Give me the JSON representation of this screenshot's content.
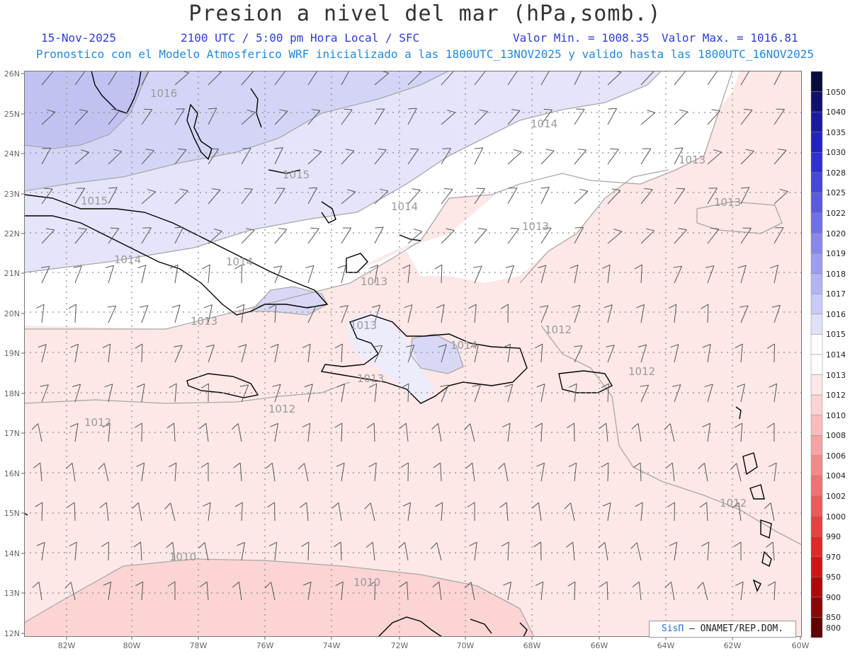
{
  "header": {
    "title": "Presion a nivel del mar (hPa,somb.)",
    "date": "15-Nov-2025",
    "time": "2100 UTC / 5:00 pm Hora Local / SFC",
    "min_label": "Valor Min. = 1008.35",
    "max_label": "Valor Max. = 1016.81",
    "model_line": "Pronostico con el Modelo Atmosferico WRF inicializado a las 1800UTC_13NOV2025 y valido hasta las  1800UTC_16NOV2025"
  },
  "map": {
    "lat_labels": [
      "26N",
      "25N",
      "24N",
      "23N",
      "22N",
      "21N",
      "20N",
      "19N",
      "18N",
      "17N",
      "16N",
      "15N",
      "14N",
      "13N",
      "12N"
    ],
    "lon_labels": [
      "82W",
      "80W",
      "78W",
      "76W",
      "74W",
      "72W",
      "70W",
      "68W",
      "66W",
      "64W",
      "62W",
      "60W"
    ],
    "contour_labels": [
      {
        "text": "1016"
      },
      {
        "text": "1015"
      },
      {
        "text": "1015"
      },
      {
        "text": "1014"
      },
      {
        "text": "1014"
      },
      {
        "text": "1014"
      },
      {
        "text": "1014"
      },
      {
        "text": "1013"
      },
      {
        "text": "1013"
      },
      {
        "text": "1013"
      },
      {
        "text": "1013"
      },
      {
        "text": "1013"
      },
      {
        "text": "1013"
      },
      {
        "text": "1012"
      },
      {
        "text": "1012"
      },
      {
        "text": "1012"
      },
      {
        "text": "1012"
      },
      {
        "text": "1012"
      },
      {
        "text": "1010"
      },
      {
        "text": "1010"
      },
      {
        "text": "1013"
      },
      {
        "text": "1014"
      }
    ]
  },
  "legend": {
    "levels": [
      "1050",
      "1040",
      "1035",
      "1030",
      "1028",
      "1025",
      "1022",
      "1020",
      "1019",
      "1018",
      "1017",
      "1016",
      "1015",
      "1014",
      "1013",
      "1012",
      "1010",
      "1008",
      "1006",
      "1004",
      "1002",
      "1000",
      "990",
      "970",
      "950",
      "900",
      "850",
      "800"
    ],
    "colors": [
      "#0a0a3c",
      "#10106e",
      "#1a1aa0",
      "#2222c0",
      "#3030d0",
      "#4646d8",
      "#5a5ae0",
      "#7070e6",
      "#8888ec",
      "#9c9cf0",
      "#b4b4f4",
      "#cacaf8",
      "#e0e0fa",
      "#ffffff",
      "#ffffff",
      "#fde6e6",
      "#fcd3d3",
      "#f9bcbc",
      "#f6a3a3",
      "#f38a8a",
      "#f07272",
      "#ec5a5a",
      "#e84040",
      "#e02828",
      "#d01414",
      "#b00808",
      "#8c0404",
      "#600000"
    ]
  },
  "credit": {
    "brand": "SisΠ",
    "text": "– ONAMET/REP.DOM."
  }
}
